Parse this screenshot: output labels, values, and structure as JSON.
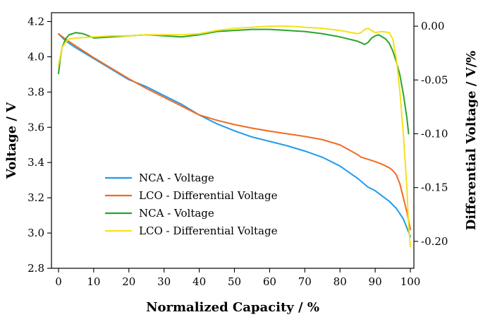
{
  "chart_data": {
    "type": "line",
    "title": "",
    "xlabel": "Normalized Capacity / %",
    "ylabel": "Voltage / V",
    "ylabel_right": "Differential Voltage /  V/%",
    "xlim": [
      -2,
      101
    ],
    "ylim": [
      2.8,
      4.25
    ],
    "ylim_right": [
      -0.225,
      0.0125
    ],
    "xticks": [
      0,
      10,
      20,
      30,
      40,
      50,
      60,
      70,
      80,
      90,
      100
    ],
    "xtick_labels": [
      "0",
      "10",
      "20",
      "30",
      "40",
      "50",
      "60",
      "70",
      "80",
      "90",
      "100"
    ],
    "yticks": [
      2.8,
      3.0,
      3.2,
      3.4,
      3.6,
      3.8,
      4.0,
      4.2
    ],
    "ytick_labels": [
      "2.8",
      "3.0",
      "3.2",
      "3.4",
      "3.6",
      "3.8",
      "4.0",
      "4.2"
    ],
    "yticks_right": [
      0.0,
      -0.05,
      -0.1,
      -0.15,
      -0.2
    ],
    "ytick_labels_right": [
      "0.00",
      "-0.05",
      "-0.10",
      "-0.15",
      "-0.20"
    ],
    "legend_position": "lower-left",
    "series": [
      {
        "name": "NCA - Voltage",
        "color": "#1f9bf0",
        "axis": "left",
        "x": [
          0,
          2,
          5,
          10,
          15,
          20,
          25,
          30,
          35,
          40,
          45,
          50,
          55,
          60,
          65,
          70,
          75,
          80,
          85,
          88,
          90,
          92,
          94,
          96,
          98,
          99,
          100
        ],
        "y": [
          4.13,
          4.09,
          4.05,
          3.99,
          3.93,
          3.87,
          3.83,
          3.78,
          3.73,
          3.67,
          3.62,
          3.58,
          3.545,
          3.52,
          3.495,
          3.465,
          3.43,
          3.38,
          3.31,
          3.26,
          3.24,
          3.21,
          3.18,
          3.14,
          3.08,
          3.03,
          2.98
        ]
      },
      {
        "name": "LCO - Differential Voltage",
        "color": "#f26b21",
        "axis": "left",
        "x": [
          0,
          2,
          5,
          10,
          15,
          20,
          25,
          30,
          35,
          40,
          45,
          50,
          55,
          60,
          65,
          70,
          75,
          80,
          85,
          86,
          88,
          90,
          92,
          94,
          95,
          96,
          97,
          98,
          99,
          100
        ],
        "y": [
          4.13,
          4.1,
          4.06,
          3.995,
          3.935,
          3.875,
          3.82,
          3.77,
          3.72,
          3.67,
          3.64,
          3.615,
          3.595,
          3.578,
          3.563,
          3.548,
          3.53,
          3.5,
          3.445,
          3.43,
          3.418,
          3.405,
          3.39,
          3.37,
          3.355,
          3.33,
          3.28,
          3.2,
          3.12,
          3.02
        ]
      },
      {
        "name": "NCA - Voltage",
        "color": "#2aa52a",
        "axis": "right",
        "x": [
          0,
          0.5,
          1,
          2,
          3,
          5,
          7,
          10,
          15,
          20,
          25,
          30,
          35,
          40,
          45,
          50,
          55,
          60,
          65,
          70,
          75,
          80,
          85,
          87,
          88,
          89,
          90,
          91,
          92,
          93,
          94,
          95,
          96,
          97,
          98,
          99,
          99.5
        ],
        "y": [
          -0.044,
          -0.03,
          -0.02,
          -0.012,
          -0.008,
          -0.006,
          -0.007,
          -0.011,
          -0.01,
          -0.009,
          -0.008,
          -0.009,
          -0.01,
          -0.008,
          -0.005,
          -0.004,
          -0.003,
          -0.003,
          -0.004,
          -0.005,
          -0.007,
          -0.01,
          -0.014,
          -0.017,
          -0.015,
          -0.011,
          -0.009,
          -0.008,
          -0.01,
          -0.012,
          -0.016,
          -0.023,
          -0.033,
          -0.045,
          -0.063,
          -0.085,
          -0.1
        ]
      },
      {
        "name": "LCO - Differential Voltage",
        "color": "#f5e11a",
        "axis": "right",
        "x": [
          0,
          0.5,
          1,
          2,
          3,
          5,
          10,
          15,
          20,
          25,
          30,
          35,
          40,
          45,
          50,
          55,
          60,
          65,
          70,
          75,
          80,
          85,
          86,
          87,
          88,
          89,
          90,
          92,
          94,
          95,
          96,
          97,
          98,
          99,
          99.5,
          100
        ],
        "y": [
          -0.036,
          -0.028,
          -0.02,
          -0.015,
          -0.012,
          -0.011,
          -0.01,
          -0.009,
          -0.009,
          -0.008,
          -0.008,
          -0.008,
          -0.007,
          -0.004,
          -0.002,
          -0.001,
          0.0,
          0.0,
          -0.001,
          -0.002,
          -0.004,
          -0.007,
          -0.006,
          -0.003,
          -0.002,
          -0.004,
          -0.006,
          -0.005,
          -0.006,
          -0.012,
          -0.03,
          -0.06,
          -0.1,
          -0.15,
          -0.185,
          -0.205
        ]
      }
    ]
  }
}
